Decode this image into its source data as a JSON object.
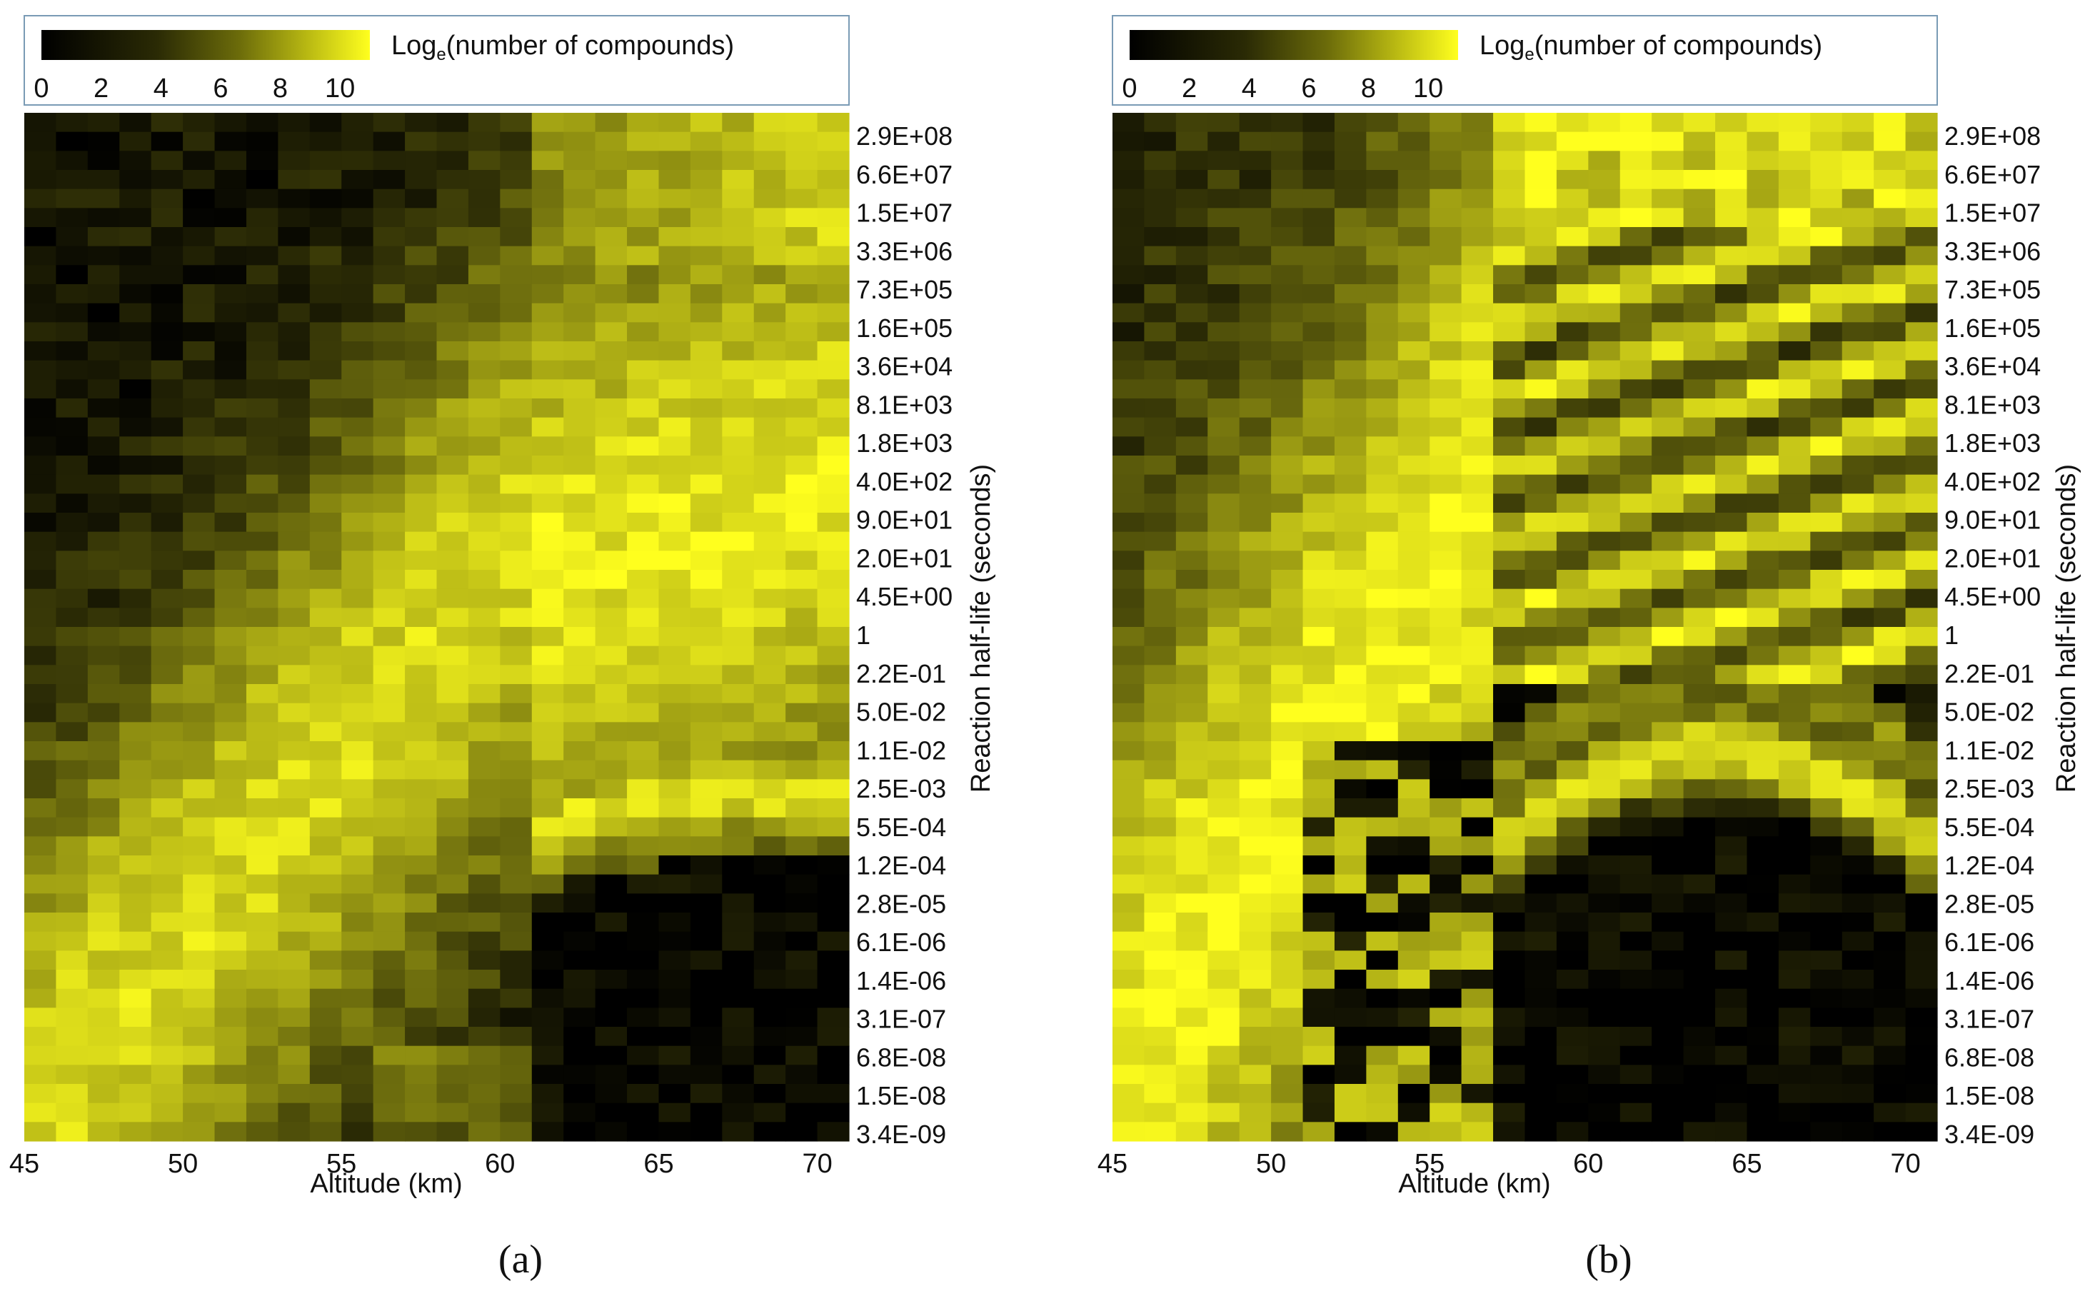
{
  "chart_data": [
    {
      "type": "heatmap",
      "panel_label": "(a)",
      "xlabel": "Altitude (km)",
      "ylabel": "Reaction half-life (seconds)",
      "x_ticks": [
        "45",
        "50",
        "55",
        "60",
        "65",
        "70"
      ],
      "xlim": [
        45,
        71
      ],
      "y_ticks": [
        "2.9E+08",
        "6.6E+07",
        "1.5E+07",
        "3.3E+06",
        "7.3E+05",
        "1.6E+05",
        "3.6E+04",
        "8.1E+03",
        "1.8E+03",
        "4.0E+02",
        "9.0E+01",
        "2.0E+01",
        "4.5E+00",
        "1",
        "2.2E-01",
        "5.0E-02",
        "1.1E-02",
        "2.5E-03",
        "5.5E-04",
        "1.2E-04",
        "2.8E-05",
        "6.1E-06",
        "1.4E-06",
        "3.1E-07",
        "6.8E-08",
        "1.5E-08",
        "3.4E-09"
      ],
      "colorbar": {
        "label_prefix": "Log",
        "label_sub": "e",
        "label_suffix": "(number of compounds)",
        "ticks": [
          "0",
          "2",
          "4",
          "6",
          "8",
          "10"
        ],
        "range": [
          0,
          11
        ],
        "color_low": "#000000",
        "color_high": "#ffff1e"
      },
      "grid_cols": 26,
      "grid_rows": 54,
      "profile": "a",
      "seed": 11
    },
    {
      "type": "heatmap",
      "panel_label": "(b)",
      "xlabel": "Altitude (km)",
      "ylabel": "Reaction half-life (seconds)",
      "x_ticks": [
        "45",
        "50",
        "55",
        "60",
        "65",
        "70"
      ],
      "xlim": [
        45,
        71
      ],
      "y_ticks": [
        "2.9E+08",
        "6.6E+07",
        "1.5E+07",
        "3.3E+06",
        "7.3E+05",
        "1.6E+05",
        "3.6E+04",
        "8.1E+03",
        "1.8E+03",
        "4.0E+02",
        "9.0E+01",
        "2.0E+01",
        "4.5E+00",
        "1",
        "2.2E-01",
        "5.0E-02",
        "1.1E-02",
        "2.5E-03",
        "5.5E-04",
        "1.2E-04",
        "2.8E-05",
        "6.1E-06",
        "1.4E-06",
        "3.1E-07",
        "6.8E-08",
        "1.5E-08",
        "3.4E-09"
      ],
      "colorbar": {
        "label_prefix": "Log",
        "label_sub": "e",
        "label_suffix": "(number of compounds)",
        "ticks": [
          "0",
          "2",
          "4",
          "6",
          "8",
          "10"
        ],
        "range": [
          0,
          11
        ],
        "color_low": "#000000",
        "color_high": "#ffff1e"
      },
      "grid_cols": 26,
      "grid_rows": 54,
      "profile": "b",
      "seed": 29
    }
  ]
}
